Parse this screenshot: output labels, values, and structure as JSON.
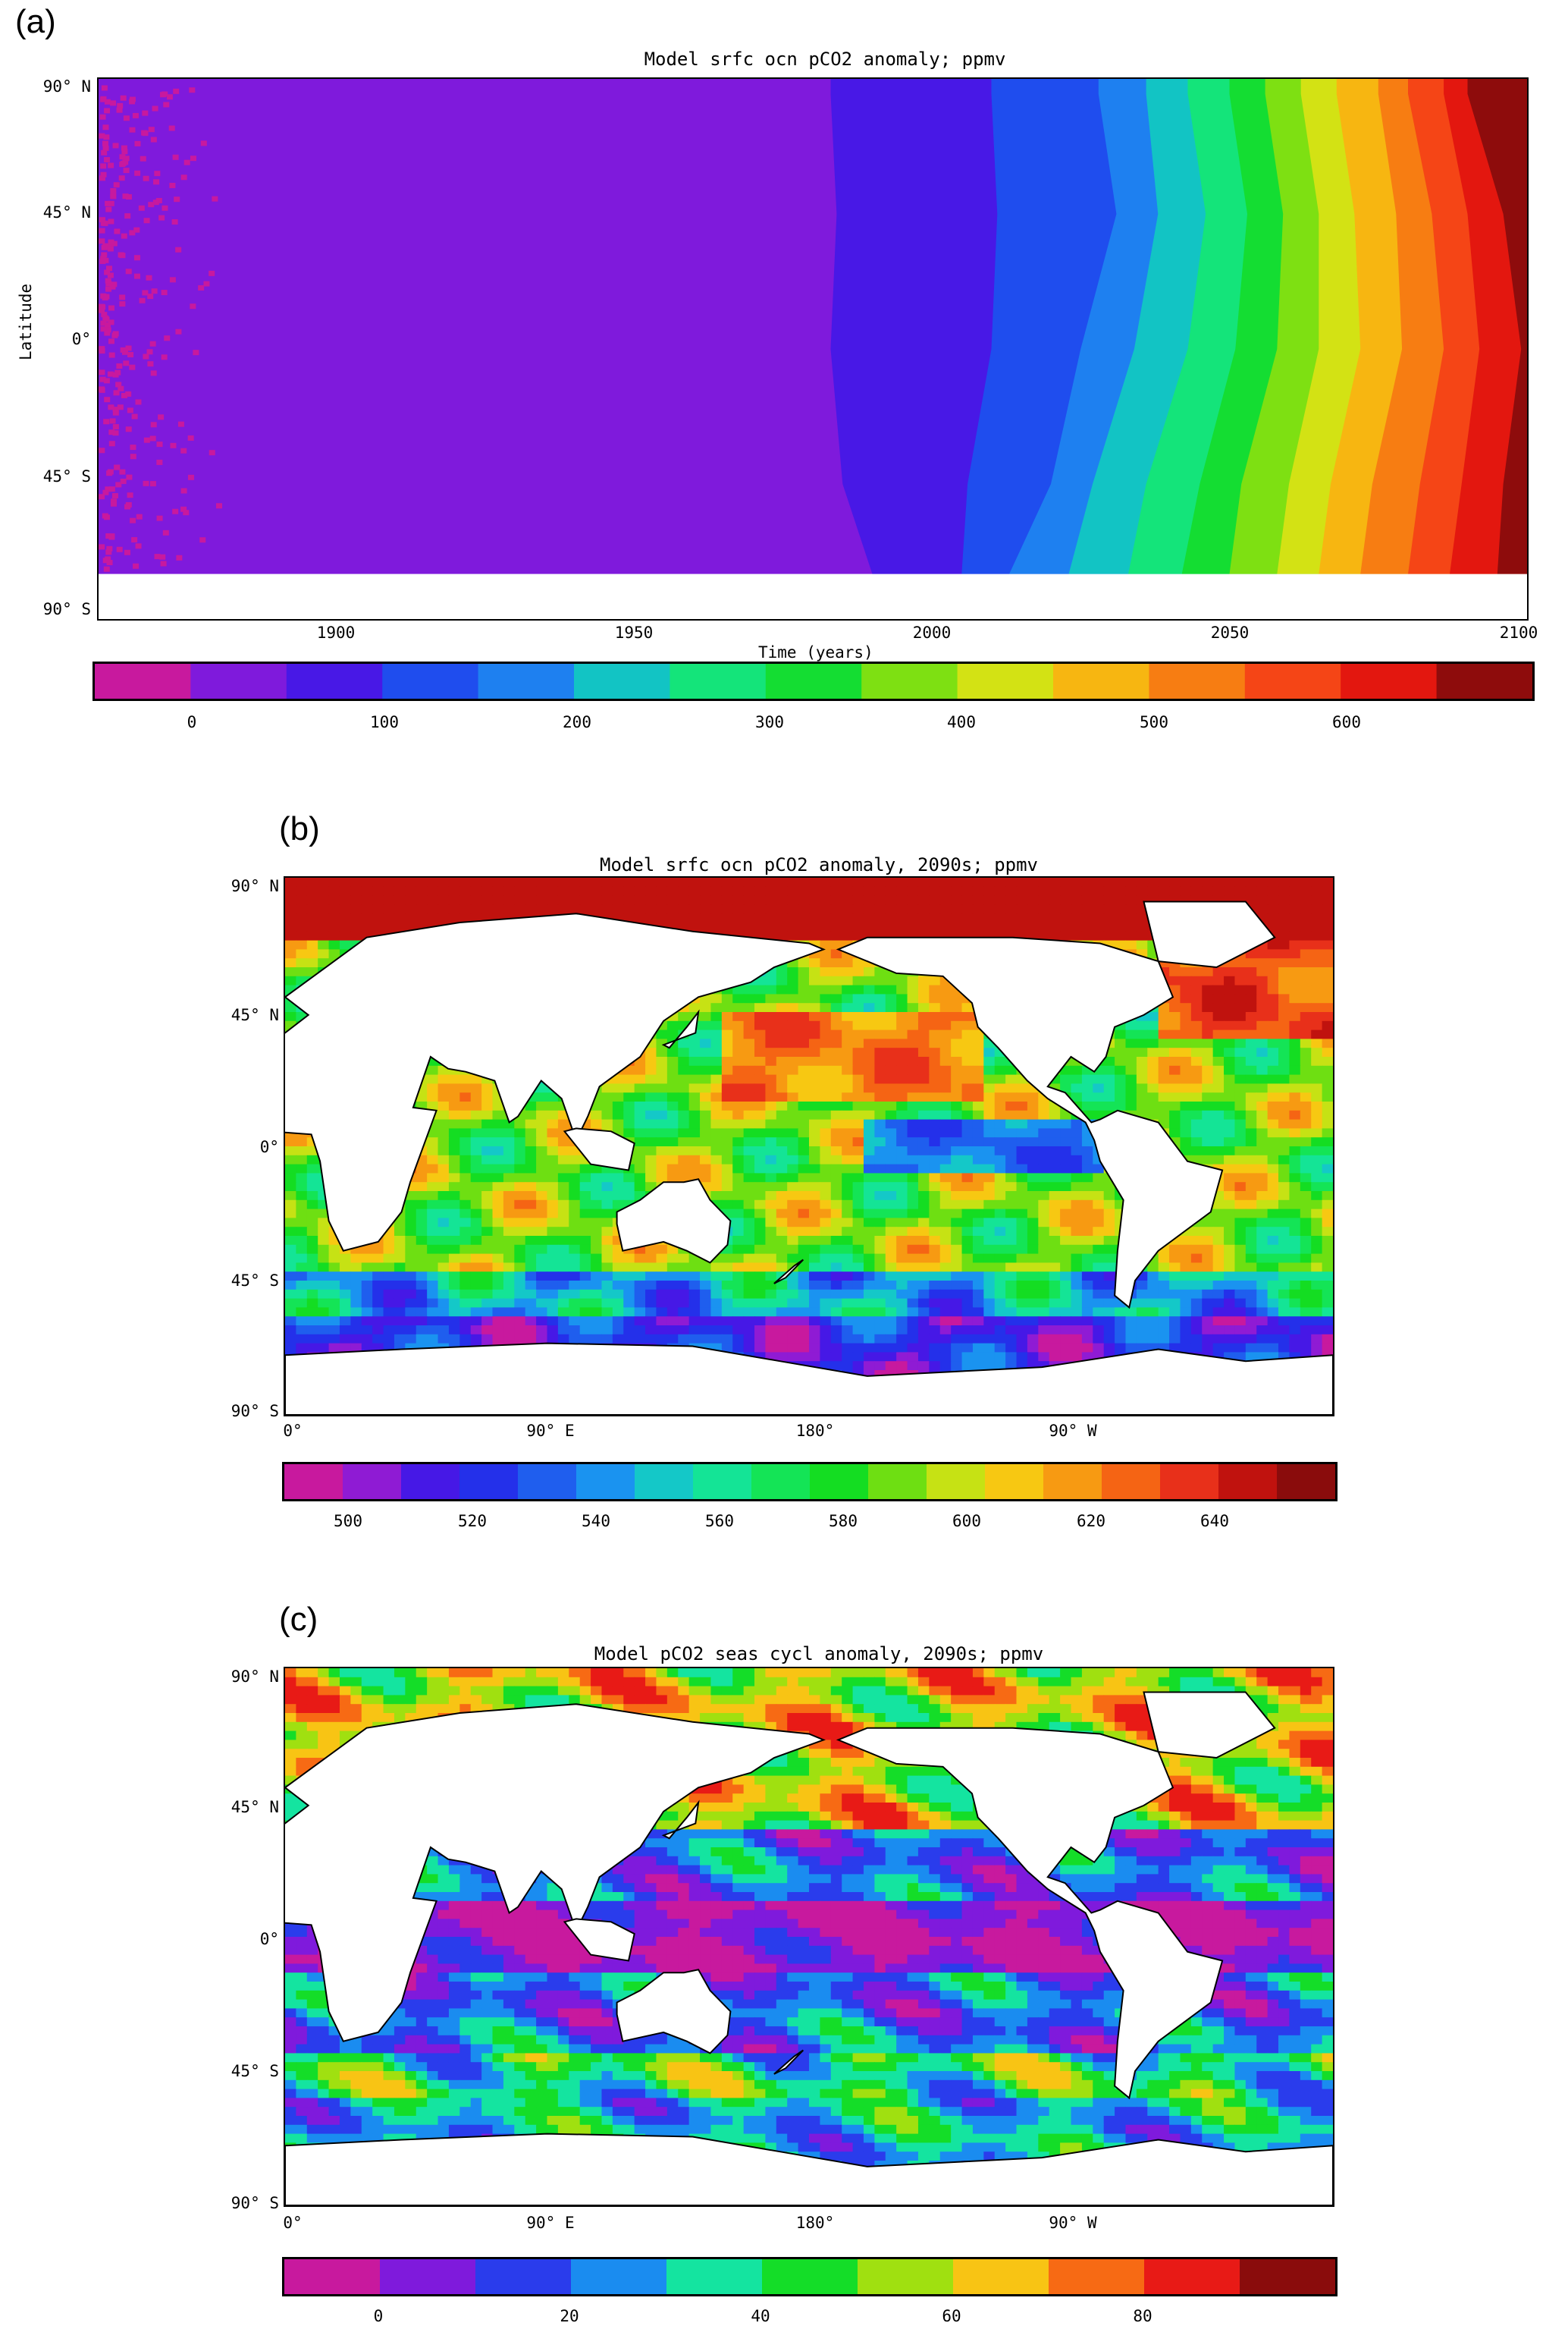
{
  "colors": {
    "a": [
      "#c8199e",
      "#7f1adc",
      "#4818e6",
      "#1f4dee",
      "#1e80f0",
      "#12c4c4",
      "#14e47a",
      "#14dd32",
      "#7ee012",
      "#d3e214",
      "#f7b611",
      "#f77d12",
      "#f54516",
      "#e3170f",
      "#8e0c0c"
    ],
    "b": [
      "#c8199e",
      "#8f1bd4",
      "#4618e6",
      "#2430ea",
      "#1f5eee",
      "#1a93f0",
      "#14c8c8",
      "#14e496",
      "#14e456",
      "#14dd22",
      "#6edf12",
      "#c6e214",
      "#f7c812",
      "#f79a12",
      "#f56414",
      "#e8301a",
      "#c0120e",
      "#8a0c0c"
    ],
    "c": [
      "#c8199e",
      "#7f1adc",
      "#2a3cec",
      "#1a8cf0",
      "#14e4a0",
      "#14dd28",
      "#a0e010",
      "#f8c414",
      "#f76a14",
      "#e81a16",
      "#8a0c0c"
    ]
  },
  "chart_data": [
    {
      "panel": "(a)",
      "type": "heatmap",
      "title": "Model srfc ocn pCO2 anomaly; ppmv",
      "xlabel": "Time (years)",
      "ylabel": "Latitude",
      "xlim": [
        1860,
        2100
      ],
      "ylim": [
        -90,
        90
      ],
      "x_ticks": [
        "1900",
        "1950",
        "2000",
        "2050",
        "2100"
      ],
      "x_tick_values": [
        1900,
        1950,
        2000,
        2050,
        2100
      ],
      "y_ticks": [
        "90° N",
        "45° N",
        "0°",
        "45° S",
        "90° S"
      ],
      "y_tick_values": [
        90,
        45,
        0,
        -45,
        -90
      ],
      "colorbar": {
        "levels": [
          -50,
          0,
          50,
          100,
          150,
          200,
          250,
          300,
          350,
          400,
          450,
          500,
          550,
          600,
          650,
          700
        ],
        "tick_labels": [
          "0",
          "100",
          "200",
          "300",
          "400",
          "500",
          "600"
        ],
        "tick_values": [
          0,
          100,
          200,
          300,
          400,
          500,
          600
        ]
      },
      "contour_boundaries": [
        {
          "level": 50,
          "year_at_lat": [
            [
              85,
              1983
            ],
            [
              45,
              1984
            ],
            [
              0,
              1983
            ],
            [
              -45,
              1985
            ],
            [
              -75,
              1990
            ]
          ]
        },
        {
          "level": 100,
          "year_at_lat": [
            [
              85,
              2010
            ],
            [
              45,
              2011
            ],
            [
              0,
              2010
            ],
            [
              -45,
              2006
            ],
            [
              -75,
              2005
            ]
          ]
        },
        {
          "level": 150,
          "year_at_lat": [
            [
              85,
              2028
            ],
            [
              45,
              2031
            ],
            [
              0,
              2025
            ],
            [
              -45,
              2020
            ],
            [
              -75,
              2013
            ]
          ]
        },
        {
          "level": 200,
          "year_at_lat": [
            [
              85,
              2036
            ],
            [
              45,
              2038
            ],
            [
              0,
              2034
            ],
            [
              -45,
              2027
            ],
            [
              -75,
              2023
            ]
          ]
        },
        {
          "level": 250,
          "year_at_lat": [
            [
              85,
              2043
            ],
            [
              45,
              2046
            ],
            [
              0,
              2043
            ],
            [
              -45,
              2036
            ],
            [
              -75,
              2033
            ]
          ]
        },
        {
          "level": 300,
          "year_at_lat": [
            [
              85,
              2050
            ],
            [
              45,
              2053
            ],
            [
              0,
              2051
            ],
            [
              -45,
              2045
            ],
            [
              -75,
              2042
            ]
          ]
        },
        {
          "level": 350,
          "year_at_lat": [
            [
              85,
              2056
            ],
            [
              45,
              2059
            ],
            [
              0,
              2058
            ],
            [
              -45,
              2052
            ],
            [
              -75,
              2050
            ]
          ]
        },
        {
          "level": 400,
          "year_at_lat": [
            [
              85,
              2062
            ],
            [
              45,
              2065
            ],
            [
              0,
              2065
            ],
            [
              -45,
              2060
            ],
            [
              -75,
              2058
            ]
          ]
        },
        {
          "level": 450,
          "year_at_lat": [
            [
              85,
              2068
            ],
            [
              45,
              2071
            ],
            [
              0,
              2072
            ],
            [
              -45,
              2067
            ],
            [
              -75,
              2065
            ]
          ]
        },
        {
          "level": 500,
          "year_at_lat": [
            [
              85,
              2075
            ],
            [
              45,
              2078
            ],
            [
              0,
              2079
            ],
            [
              -45,
              2074
            ],
            [
              -75,
              2072
            ]
          ]
        },
        {
          "level": 550,
          "year_at_lat": [
            [
              85,
              2080
            ],
            [
              45,
              2084
            ],
            [
              0,
              2086
            ],
            [
              -45,
              2082
            ],
            [
              -75,
              2080
            ]
          ]
        },
        {
          "level": 600,
          "year_at_lat": [
            [
              85,
              2086
            ],
            [
              45,
              2090
            ],
            [
              0,
              2092
            ],
            [
              -45,
              2089
            ],
            [
              -75,
              2087
            ]
          ]
        },
        {
          "level": 650,
          "year_at_lat": [
            [
              85,
              2090
            ],
            [
              45,
              2096
            ],
            [
              0,
              2099
            ],
            [
              -45,
              2096
            ],
            [
              -75,
              2095
            ]
          ]
        }
      ]
    },
    {
      "panel": "(b)",
      "type": "heatmap",
      "title": "Model srfc ocn pCO2 anomaly, 2090s; ppmv",
      "xlabel": "",
      "ylabel": "",
      "x_ticks": [
        "0°",
        "90° E",
        "180°",
        "90° W"
      ],
      "x_tick_values": [
        0,
        90,
        180,
        270
      ],
      "y_ticks": [
        "90° N",
        "45° N",
        "0°",
        "45° S",
        "90° S"
      ],
      "y_tick_values": [
        90,
        45,
        0,
        -45,
        -90
      ],
      "colorbar": {
        "levels": [
          490,
          500,
          510,
          520,
          530,
          540,
          550,
          560,
          570,
          580,
          590,
          600,
          610,
          620,
          630,
          640,
          650,
          660
        ],
        "tick_labels": [
          "500",
          "520",
          "540",
          "560",
          "580",
          "600",
          "620",
          "640"
        ],
        "tick_values": [
          500,
          520,
          540,
          560,
          580,
          600,
          620,
          640
        ]
      }
    },
    {
      "panel": "(c)",
      "type": "heatmap",
      "title": "Model pCO2 seas cycl anomaly, 2090s; ppmv",
      "xlabel": "",
      "ylabel": "",
      "x_ticks": [
        "0°",
        "90° E",
        "180°",
        "90° W"
      ],
      "x_tick_values": [
        0,
        90,
        180,
        270
      ],
      "y_ticks": [
        "90° N",
        "45° N",
        "0°",
        "45° S",
        "90° S"
      ],
      "y_tick_values": [
        90,
        45,
        0,
        -45,
        -90
      ],
      "colorbar": {
        "levels": [
          -10,
          0,
          10,
          20,
          30,
          40,
          50,
          60,
          70,
          80,
          90,
          100
        ],
        "tick_labels": [
          "0",
          "20",
          "40",
          "60",
          "80"
        ],
        "tick_values": [
          0,
          20,
          40,
          60,
          80
        ]
      }
    }
  ]
}
